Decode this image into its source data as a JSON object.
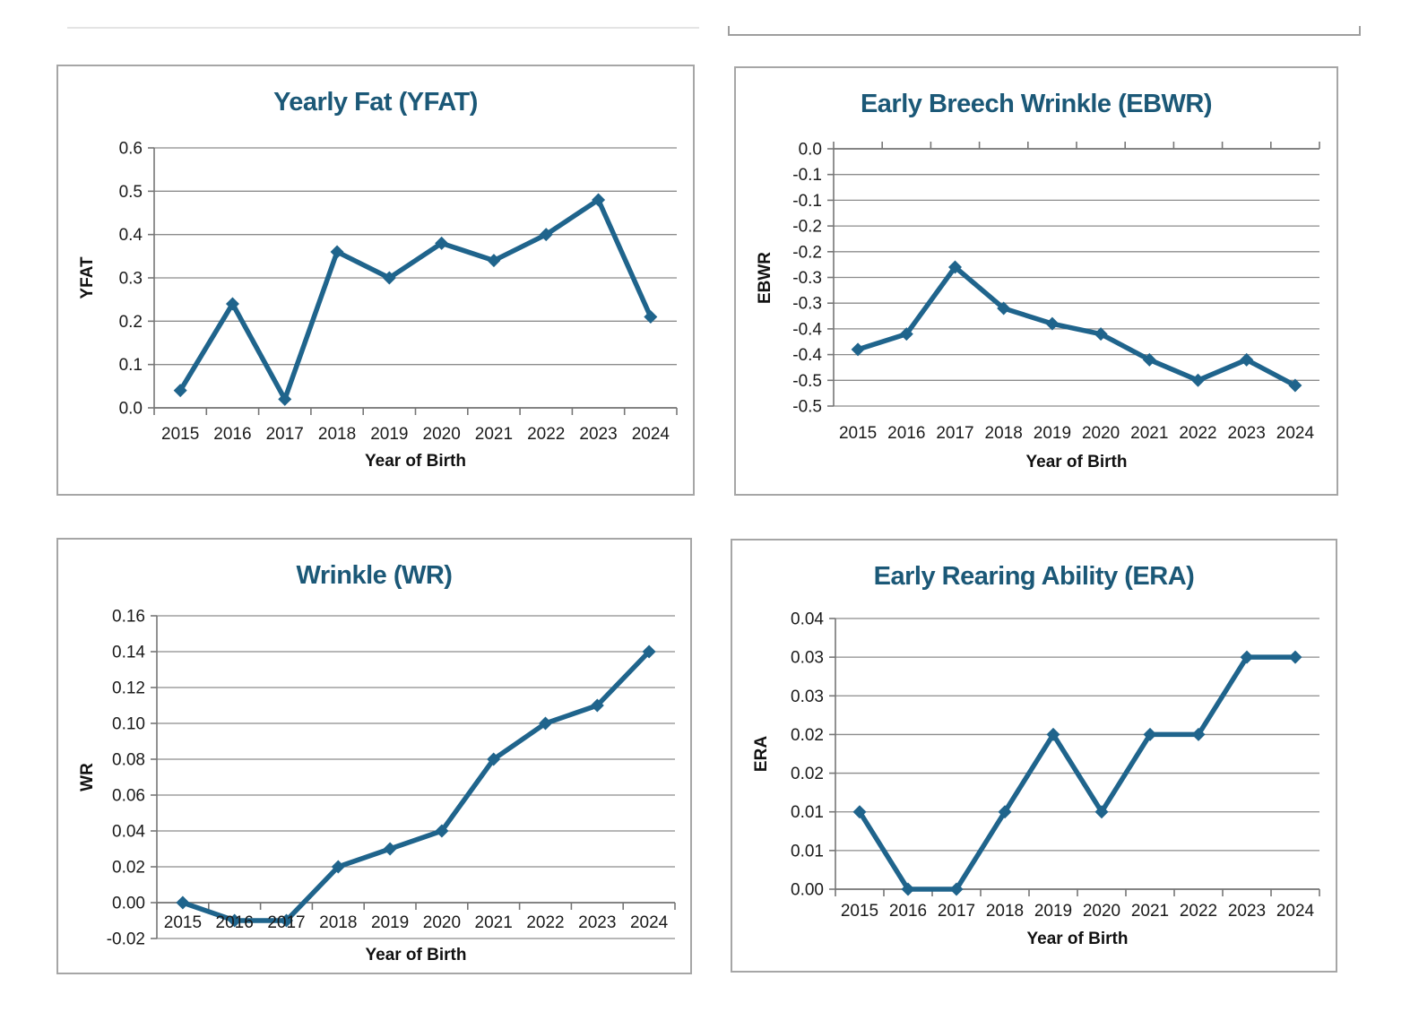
{
  "colors": {
    "line": "#1F648C",
    "marker": "#1F648C",
    "title": "#1B5877",
    "gridline": "#8C8C8C",
    "axis_line": "#767676",
    "box_border": "#A6A6A6",
    "tick_text": "#1A1A1A",
    "top_left_rule": "#E4E4E4",
    "top_right_box_border": "#9E9E9E"
  },
  "chart_data": [
    {
      "type": "line",
      "title": "Yearly Fat (YFAT)",
      "xlabel": "Year of Birth",
      "ylabel": "YFAT",
      "categories": [
        "2015",
        "2016",
        "2017",
        "2018",
        "2019",
        "2020",
        "2021",
        "2022",
        "2023",
        "2024"
      ],
      "values": [
        0.04,
        0.24,
        0.02,
        0.36,
        0.3,
        0.38,
        0.34,
        0.4,
        0.48,
        0.21
      ],
      "ylim": [
        0,
        0.6
      ],
      "ytick_values": [
        0.6,
        0.5,
        0.4,
        0.3,
        0.2,
        0.1,
        0.0
      ],
      "ytick_labels": [
        "0.6",
        "0.5",
        "0.4",
        "0.3",
        "0.2",
        "0.1",
        "0.0"
      ],
      "category_axis_cross": 0.0,
      "grid": true,
      "legend": false,
      "marker": "diamond"
    },
    {
      "type": "line",
      "title": "Early Breech Wrinkle (EBWR)",
      "xlabel": "Year of Birth",
      "ylabel": "EBWR",
      "categories": [
        "2015",
        "2016",
        "2017",
        "2018",
        "2019",
        "2020",
        "2021",
        "2022",
        "2023",
        "2024"
      ],
      "values": [
        -0.39,
        -0.36,
        -0.23,
        -0.31,
        -0.34,
        -0.36,
        -0.41,
        -0.45,
        -0.41,
        -0.46
      ],
      "ylim": [
        -0.5,
        0
      ],
      "ytick_values": [
        0,
        -0.05,
        -0.1,
        -0.15,
        -0.2,
        -0.25,
        -0.3,
        -0.35,
        -0.4,
        -0.45,
        -0.5
      ],
      "ytick_labels": [
        "0.0",
        "-0.1",
        "-0.1",
        "-0.2",
        "-0.2",
        "-0.3",
        "-0.3",
        "-0.4",
        "-0.4",
        "-0.5",
        "-0.5"
      ],
      "category_axis_cross": 0.0,
      "grid": true,
      "legend": false,
      "marker": "diamond"
    },
    {
      "type": "line",
      "title": "Wrinkle (WR)",
      "xlabel": "Year of Birth",
      "ylabel": "WR",
      "categories": [
        "2015",
        "2016",
        "2017",
        "2018",
        "2019",
        "2020",
        "2021",
        "2022",
        "2023",
        "2024"
      ],
      "values": [
        0.0,
        -0.01,
        -0.01,
        0.02,
        0.03,
        0.04,
        0.08,
        0.1,
        0.11,
        0.14
      ],
      "ylim": [
        -0.02,
        0.16
      ],
      "ytick_values": [
        0.16,
        0.14,
        0.12,
        0.1,
        0.08,
        0.06,
        0.04,
        0.02,
        0.0,
        -0.02
      ],
      "ytick_labels": [
        "0.16",
        "0.14",
        "0.12",
        "0.10",
        "0.08",
        "0.06",
        "0.04",
        "0.02",
        "0.00",
        "-0.02"
      ],
      "category_axis_cross": 0.0,
      "grid": true,
      "legend": false,
      "marker": "diamond"
    },
    {
      "type": "line",
      "title": "Early Rearing Ability (ERA)",
      "xlabel": "Year of Birth",
      "ylabel": "ERA",
      "categories": [
        "2015",
        "2016",
        "2017",
        "2018",
        "2019",
        "2020",
        "2021",
        "2022",
        "2023",
        "2024"
      ],
      "values": [
        0.01,
        0.0,
        0.0,
        0.01,
        0.02,
        0.01,
        0.02,
        0.02,
        0.03,
        0.03
      ],
      "ylim": [
        0,
        0.035
      ],
      "ytick_values": [
        0.035,
        0.03,
        0.025,
        0.02,
        0.015,
        0.01,
        0.005,
        0.0
      ],
      "ytick_labels": [
        "0.04",
        "0.03",
        "0.03",
        "0.02",
        "0.02",
        "0.01",
        "0.01",
        "0.00"
      ],
      "category_axis_cross": 0.0,
      "grid": true,
      "legend": false,
      "marker": "diamond"
    }
  ]
}
